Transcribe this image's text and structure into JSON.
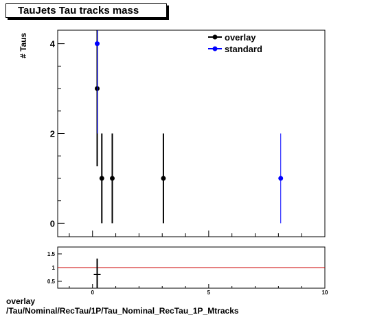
{
  "chart_data": [
    {
      "type": "scatter",
      "title": "TauJets Tau tracks mass",
      "xlabel": "",
      "ylabel": "# Taus",
      "xlim": [
        -1.5,
        10.0
      ],
      "ylim": [
        -0.3,
        4.3
      ],
      "x_ticks": [
        0,
        5,
        10
      ],
      "y_ticks": [
        0,
        2,
        4
      ],
      "legend": {
        "position": "top-right",
        "entries": [
          "overlay",
          "standard"
        ]
      },
      "series": [
        {
          "name": "overlay",
          "color": "#000000",
          "points": [
            {
              "x": 0.2,
              "y": 3,
              "ylo": 1.27,
              "yhi": 4.3
            },
            {
              "x": 0.4,
              "y": 1,
              "ylo": 0,
              "yhi": 2
            },
            {
              "x": 0.85,
              "y": 1,
              "ylo": 0,
              "yhi": 2
            },
            {
              "x": 3.05,
              "y": 1,
              "ylo": 0,
              "yhi": 2
            }
          ]
        },
        {
          "name": "standard",
          "color": "#0000ff",
          "points": [
            {
              "x": 0.2,
              "y": 4,
              "ylo": 2.0,
              "yhi": 4.3
            },
            {
              "x": 8.1,
              "y": 1,
              "ylo": 0,
              "yhi": 2
            }
          ]
        }
      ]
    },
    {
      "type": "scatter",
      "title": "",
      "xlabel": "",
      "ylabel": "",
      "xlim": [
        -1.5,
        10.0
      ],
      "ylim": [
        0.25,
        1.75
      ],
      "x_ticks": [
        0,
        5,
        10
      ],
      "x_tick_labels": [
        "0",
        "5",
        "10"
      ],
      "y_ticks": [
        0.5,
        1,
        1.5
      ],
      "y_tick_labels": [
        "0.5",
        "1",
        "1.5"
      ],
      "reference_line": {
        "y": 1,
        "color": "#cc0000"
      },
      "series": [
        {
          "name": "",
          "color": "#000000",
          "points": [
            {
              "x": 0.2,
              "y": 0.75,
              "ylo": 0.2,
              "yhi": 1.33
            }
          ]
        }
      ]
    }
  ],
  "footer": {
    "line1": "overlay",
    "line2": "/Tau/Nominal/RecTau/1P/Tau_Nominal_RecTau_1P_Mtracks"
  }
}
